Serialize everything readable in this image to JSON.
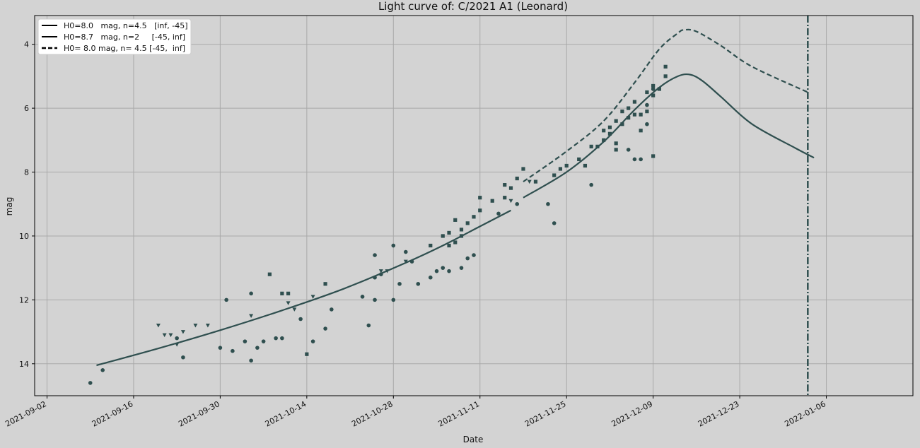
{
  "chart_data": {
    "type": "scatter",
    "title": "Light curve of: C/2021 A1 (Leonard)",
    "xlabel": "Date",
    "ylabel": "mag",
    "x_ticks": [
      "2021-09-02",
      "2021-09-16",
      "2021-09-30",
      "2021-10-14",
      "2021-10-28",
      "2021-11-11",
      "2021-11-25",
      "2021-12-09",
      "2021-12-23",
      "2022-01-06"
    ],
    "y_ticks": [
      4,
      6,
      8,
      10,
      12,
      14
    ],
    "xlim": [
      "2021-08-31",
      "2022-01-20"
    ],
    "ylim": [
      15.0,
      3.1
    ],
    "y_inverted": true,
    "grid": true,
    "legend_position": "top-left",
    "colors": {
      "series": "#2f4f4f",
      "background": "#d3d3d3",
      "grid": "#a9a9a9"
    },
    "perihelion_marker": {
      "x": "2022-01-03",
      "style": "dashdot"
    },
    "series": [
      {
        "name": "H0=8.0   mag, n=4.5   [inf, -45]",
        "style": "solid",
        "x": [
          "2021-09-10",
          "2021-09-20",
          "2021-09-30",
          "2021-10-10",
          "2021-10-20",
          "2021-10-30",
          "2021-11-05",
          "2021-11-11",
          "2021-11-16"
        ],
        "y": [
          14.05,
          13.52,
          12.95,
          12.33,
          11.65,
          10.84,
          10.3,
          9.7,
          9.2
        ]
      },
      {
        "name": "H0=8.7   mag, n=2     [-45, inf]",
        "style": "solid",
        "x": [
          "2021-11-18",
          "2021-11-25",
          "2021-12-01",
          "2021-12-06",
          "2021-12-10",
          "2021-12-13",
          "2021-12-15",
          "2021-12-17",
          "2021-12-20",
          "2021-12-25",
          "2022-01-01",
          "2022-01-04"
        ],
        "y": [
          8.8,
          8.0,
          7.05,
          6.05,
          5.35,
          5.0,
          4.95,
          5.15,
          5.65,
          6.5,
          7.25,
          7.55
        ]
      },
      {
        "name": "H0= 8.0 mag, n= 4.5 [-45,  inf]",
        "style": "dashed",
        "x": [
          "2021-11-18",
          "2021-11-25",
          "2021-12-01",
          "2021-12-06",
          "2021-12-10",
          "2021-12-13",
          "2021-12-14",
          "2021-12-16",
          "2021-12-20",
          "2021-12-25",
          "2022-01-03"
        ],
        "y": [
          8.3,
          7.35,
          6.4,
          5.2,
          4.15,
          3.65,
          3.55,
          3.6,
          4.05,
          4.7,
          5.5
        ]
      }
    ],
    "observations": [
      {
        "marker": "circle",
        "points": [
          [
            "2021-09-09",
            14.6
          ],
          [
            "2021-09-11",
            14.2
          ],
          [
            "2021-09-23",
            13.2
          ],
          [
            "2021-09-24",
            13.8
          ],
          [
            "2021-09-30",
            13.5
          ],
          [
            "2021-10-02",
            13.6
          ],
          [
            "2021-10-04",
            13.3
          ],
          [
            "2021-10-05",
            13.9
          ],
          [
            "2021-10-06",
            13.5
          ],
          [
            "2021-10-07",
            13.3
          ],
          [
            "2021-10-09",
            13.2
          ],
          [
            "2021-10-10",
            13.2
          ],
          [
            "2021-10-13",
            12.6
          ],
          [
            "2021-10-15",
            13.3
          ],
          [
            "2021-10-17",
            12.9
          ],
          [
            "2021-10-18",
            12.3
          ],
          [
            "2021-10-01",
            12.0
          ],
          [
            "2021-10-05",
            11.8
          ],
          [
            "2021-10-23",
            11.9
          ],
          [
            "2021-10-24",
            12.8
          ],
          [
            "2021-10-25",
            12.0
          ],
          [
            "2021-10-25",
            11.3
          ],
          [
            "2021-10-26",
            11.2
          ],
          [
            "2021-10-28",
            12.0
          ],
          [
            "2021-10-29",
            11.5
          ],
          [
            "2021-10-31",
            10.8
          ],
          [
            "2021-11-01",
            11.5
          ],
          [
            "2021-11-03",
            11.3
          ],
          [
            "2021-11-04",
            11.1
          ],
          [
            "2021-11-05",
            11.0
          ],
          [
            "2021-11-06",
            11.1
          ],
          [
            "2021-11-08",
            11.0
          ],
          [
            "2021-11-09",
            10.7
          ],
          [
            "2021-11-10",
            10.6
          ],
          [
            "2021-11-14",
            9.3
          ],
          [
            "2021-11-17",
            9.0
          ],
          [
            "2021-11-22",
            9.0
          ],
          [
            "2021-11-23",
            9.6
          ],
          [
            "2021-11-29",
            8.4
          ],
          [
            "2021-12-05",
            7.3
          ],
          [
            "2021-12-06",
            7.6
          ],
          [
            "2021-12-07",
            7.6
          ],
          [
            "2021-12-08",
            6.5
          ],
          [
            "2021-12-08",
            5.9
          ],
          [
            "2021-12-09",
            5.4
          ],
          [
            "2021-10-25",
            10.6
          ],
          [
            "2021-10-28",
            10.3
          ],
          [
            "2021-10-30",
            10.5
          ]
        ]
      },
      {
        "marker": "square",
        "points": [
          [
            "2021-10-10",
            11.8
          ],
          [
            "2021-10-11",
            11.8
          ],
          [
            "2021-10-08",
            11.2
          ],
          [
            "2021-10-17",
            11.5
          ],
          [
            "2021-10-14",
            13.7
          ],
          [
            "2021-11-03",
            10.3
          ],
          [
            "2021-11-05",
            10.0
          ],
          [
            "2021-11-06",
            9.9
          ],
          [
            "2021-11-06",
            10.3
          ],
          [
            "2021-11-07",
            10.2
          ],
          [
            "2021-11-07",
            9.5
          ],
          [
            "2021-11-08",
            10.0
          ],
          [
            "2021-11-08",
            9.8
          ],
          [
            "2021-11-09",
            9.6
          ],
          [
            "2021-11-10",
            9.4
          ],
          [
            "2021-11-11",
            9.2
          ],
          [
            "2021-11-11",
            8.8
          ],
          [
            "2021-11-13",
            8.9
          ],
          [
            "2021-11-15",
            8.8
          ],
          [
            "2021-11-15",
            8.4
          ],
          [
            "2021-11-16",
            8.5
          ],
          [
            "2021-11-17",
            8.2
          ],
          [
            "2021-11-18",
            7.9
          ],
          [
            "2021-11-20",
            8.3
          ],
          [
            "2021-11-23",
            8.1
          ],
          [
            "2021-11-24",
            7.9
          ],
          [
            "2021-11-25",
            7.8
          ],
          [
            "2021-11-27",
            7.6
          ],
          [
            "2021-11-28",
            7.8
          ],
          [
            "2021-11-29",
            7.2
          ],
          [
            "2021-11-30",
            7.2
          ],
          [
            "2021-12-01",
            7.0
          ],
          [
            "2021-12-01",
            6.7
          ],
          [
            "2021-12-02",
            6.6
          ],
          [
            "2021-12-03",
            6.4
          ],
          [
            "2021-12-03",
            7.1
          ],
          [
            "2021-12-04",
            6.5
          ],
          [
            "2021-12-04",
            6.1
          ],
          [
            "2021-12-05",
            6.0
          ],
          [
            "2021-12-06",
            6.2
          ],
          [
            "2021-12-06",
            5.8
          ],
          [
            "2021-12-07",
            6.2
          ],
          [
            "2021-12-08",
            5.5
          ],
          [
            "2021-12-08",
            6.1
          ],
          [
            "2021-12-09",
            5.3
          ],
          [
            "2021-12-09",
            5.6
          ],
          [
            "2021-12-10",
            5.4
          ],
          [
            "2021-12-11",
            4.7
          ],
          [
            "2021-12-11",
            5.0
          ],
          [
            "2021-12-02",
            6.8
          ],
          [
            "2021-12-03",
            7.3
          ],
          [
            "2021-12-05",
            6.3
          ],
          [
            "2021-12-07",
            6.7
          ],
          [
            "2021-12-09",
            7.5
          ]
        ]
      },
      {
        "marker": "triangle-down",
        "points": [
          [
            "2021-09-20",
            12.8
          ],
          [
            "2021-09-21",
            13.1
          ],
          [
            "2021-09-22",
            13.1
          ],
          [
            "2021-09-23",
            13.4
          ],
          [
            "2021-09-24",
            13.0
          ],
          [
            "2021-09-26",
            12.8
          ],
          [
            "2021-09-28",
            12.8
          ],
          [
            "2021-10-05",
            12.5
          ],
          [
            "2021-10-11",
            12.1
          ],
          [
            "2021-10-12",
            12.3
          ],
          [
            "2021-10-15",
            11.9
          ],
          [
            "2021-10-26",
            11.1
          ],
          [
            "2021-10-27",
            11.1
          ],
          [
            "2021-10-30",
            10.8
          ],
          [
            "2021-11-16",
            8.9
          ],
          [
            "2021-11-19",
            8.3
          ]
        ]
      }
    ]
  }
}
